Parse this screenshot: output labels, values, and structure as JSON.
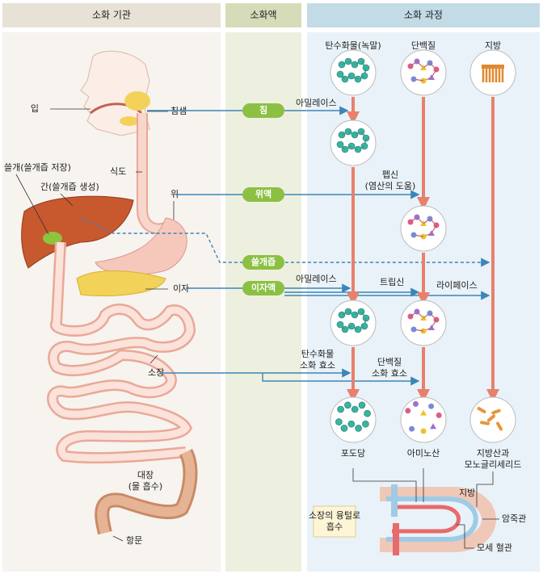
{
  "headers": [
    "소화 기관",
    "소화액",
    "소화 과정"
  ],
  "organs": {
    "mouth": "입",
    "salivary": "침샘",
    "gallbladder": "쓸개(쓸개즙 저장)",
    "esophagus": "식도",
    "liver": "간(쓸개즙 생성)",
    "stomach": "위",
    "pancreas": "이자",
    "small_intestine": "소장",
    "large_intestine": [
      "대장",
      "(물 흡수)"
    ],
    "anus": "항문"
  },
  "juices": [
    "침",
    "위액",
    "쓸개즙",
    "이자액"
  ],
  "nutrients": [
    "탄수화물(녹말)",
    "단백질",
    "지방"
  ],
  "enzymes": {
    "saliva_amylase": "아밀레이스",
    "pepsin": [
      "펩신",
      "(염산의 도움)"
    ],
    "pancreatic_amylase": "아밀레이스",
    "trypsin": "트립신",
    "lipase": "라이페이스",
    "carb_enzyme": [
      "탄수화물",
      "소화 효소"
    ],
    "protein_enzyme": [
      "단백질",
      "소화 효소"
    ]
  },
  "products": {
    "glucose": "포도당",
    "amino_acid": "아미노산",
    "fat_products": [
      "지방산과",
      "모노글리세리드"
    ]
  },
  "absorption": {
    "box": [
      "소장의 융털로",
      "흡수"
    ],
    "fat": "지방",
    "lacteal": "암죽관",
    "capillary": "모세 혈관"
  }
}
